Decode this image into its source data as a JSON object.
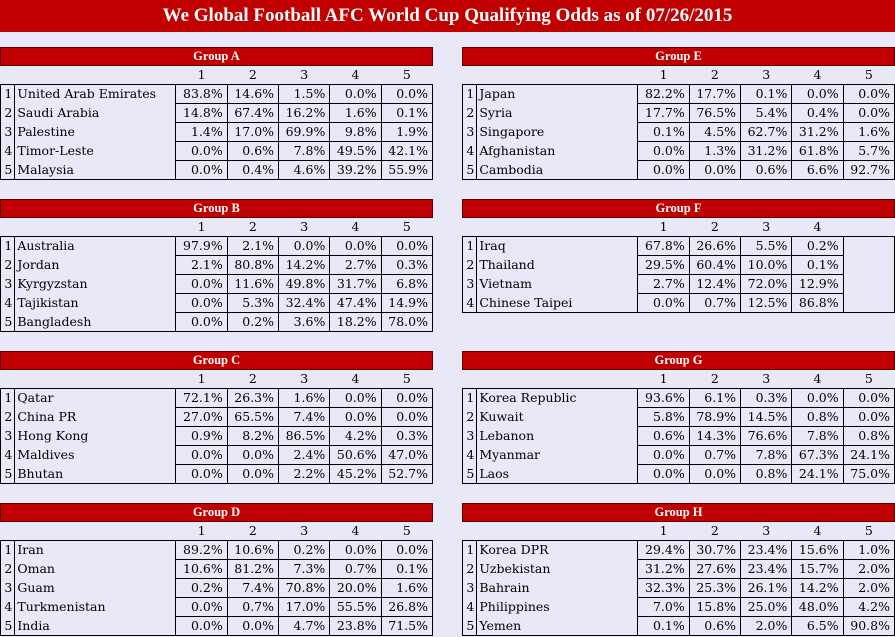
{
  "title": "We Global Football AFC World Cup Qualifying Odds as of 07/26/2015",
  "groups": [
    {
      "name": "Group A",
      "cols": [
        "1",
        "2",
        "3",
        "4",
        "5"
      ],
      "rows": [
        {
          "rank": "1",
          "team": "United Arab Emirates",
          "odds": [
            "83.8%",
            "14.6%",
            "1.5%",
            "0.0%",
            "0.0%"
          ]
        },
        {
          "rank": "2",
          "team": "Saudi Arabia",
          "odds": [
            "14.8%",
            "67.4%",
            "16.2%",
            "1.6%",
            "0.1%"
          ]
        },
        {
          "rank": "3",
          "team": "Palestine",
          "odds": [
            "1.4%",
            "17.0%",
            "69.9%",
            "9.8%",
            "1.9%"
          ]
        },
        {
          "rank": "4",
          "team": "Timor-Leste",
          "odds": [
            "0.0%",
            "0.6%",
            "7.8%",
            "49.5%",
            "42.1%"
          ]
        },
        {
          "rank": "5",
          "team": "Malaysia",
          "odds": [
            "0.0%",
            "0.4%",
            "4.6%",
            "39.2%",
            "55.9%"
          ]
        }
      ]
    },
    {
      "name": "Group E",
      "cols": [
        "1",
        "2",
        "3",
        "4",
        "5"
      ],
      "rows": [
        {
          "rank": "1",
          "team": "Japan",
          "odds": [
            "82.2%",
            "17.7%",
            "0.1%",
            "0.0%",
            "0.0%"
          ]
        },
        {
          "rank": "2",
          "team": "Syria",
          "odds": [
            "17.7%",
            "76.5%",
            "5.4%",
            "0.4%",
            "0.0%"
          ]
        },
        {
          "rank": "3",
          "team": "Singapore",
          "odds": [
            "0.1%",
            "4.5%",
            "62.7%",
            "31.2%",
            "1.6%"
          ]
        },
        {
          "rank": "4",
          "team": "Afghanistan",
          "odds": [
            "0.0%",
            "1.3%",
            "31.2%",
            "61.8%",
            "5.7%"
          ]
        },
        {
          "rank": "5",
          "team": "Cambodia",
          "odds": [
            "0.0%",
            "0.0%",
            "0.6%",
            "6.6%",
            "92.7%"
          ]
        }
      ]
    },
    {
      "name": "Group B",
      "cols": [
        "1",
        "2",
        "3",
        "4",
        "5"
      ],
      "rows": [
        {
          "rank": "1",
          "team": "Australia",
          "odds": [
            "97.9%",
            "2.1%",
            "0.0%",
            "0.0%",
            "0.0%"
          ]
        },
        {
          "rank": "2",
          "team": "Jordan",
          "odds": [
            "2.1%",
            "80.8%",
            "14.2%",
            "2.7%",
            "0.3%"
          ]
        },
        {
          "rank": "3",
          "team": "Kyrgyzstan",
          "odds": [
            "0.0%",
            "11.6%",
            "49.8%",
            "31.7%",
            "6.8%"
          ]
        },
        {
          "rank": "4",
          "team": "Tajikistan",
          "odds": [
            "0.0%",
            "5.3%",
            "32.4%",
            "47.4%",
            "14.9%"
          ]
        },
        {
          "rank": "5",
          "team": "Bangladesh",
          "odds": [
            "0.0%",
            "0.2%",
            "3.6%",
            "18.2%",
            "78.0%"
          ]
        }
      ]
    },
    {
      "name": "Group F",
      "cols": [
        "1",
        "2",
        "3",
        "4",
        ""
      ],
      "rows": [
        {
          "rank": "1",
          "team": "Iraq",
          "odds": [
            "67.8%",
            "26.6%",
            "5.5%",
            "0.2%",
            ""
          ]
        },
        {
          "rank": "2",
          "team": "Thailand",
          "odds": [
            "29.5%",
            "60.4%",
            "10.0%",
            "0.1%",
            ""
          ]
        },
        {
          "rank": "3",
          "team": "Vietnam",
          "odds": [
            "2.7%",
            "12.4%",
            "72.0%",
            "12.9%",
            ""
          ]
        },
        {
          "rank": "4",
          "team": "Chinese Taipei",
          "odds": [
            "0.0%",
            "0.7%",
            "12.5%",
            "86.8%",
            ""
          ]
        }
      ]
    },
    {
      "name": "Group C",
      "cols": [
        "1",
        "2",
        "3",
        "4",
        "5"
      ],
      "rows": [
        {
          "rank": "1",
          "team": "Qatar",
          "odds": [
            "72.1%",
            "26.3%",
            "1.6%",
            "0.0%",
            "0.0%"
          ]
        },
        {
          "rank": "2",
          "team": "China PR",
          "odds": [
            "27.0%",
            "65.5%",
            "7.4%",
            "0.0%",
            "0.0%"
          ]
        },
        {
          "rank": "3",
          "team": "Hong Kong",
          "odds": [
            "0.9%",
            "8.2%",
            "86.5%",
            "4.2%",
            "0.3%"
          ]
        },
        {
          "rank": "4",
          "team": "Maldives",
          "odds": [
            "0.0%",
            "0.0%",
            "2.4%",
            "50.6%",
            "47.0%"
          ]
        },
        {
          "rank": "5",
          "team": "Bhutan",
          "odds": [
            "0.0%",
            "0.0%",
            "2.2%",
            "45.2%",
            "52.7%"
          ]
        }
      ]
    },
    {
      "name": "Group G",
      "cols": [
        "1",
        "2",
        "3",
        "4",
        "5"
      ],
      "rows": [
        {
          "rank": "1",
          "team": "Korea Republic",
          "odds": [
            "93.6%",
            "6.1%",
            "0.3%",
            "0.0%",
            "0.0%"
          ]
        },
        {
          "rank": "2",
          "team": "Kuwait",
          "odds": [
            "5.8%",
            "78.9%",
            "14.5%",
            "0.8%",
            "0.0%"
          ]
        },
        {
          "rank": "3",
          "team": "Lebanon",
          "odds": [
            "0.6%",
            "14.3%",
            "76.6%",
            "7.8%",
            "0.8%"
          ]
        },
        {
          "rank": "4",
          "team": "Myanmar",
          "odds": [
            "0.0%",
            "0.7%",
            "7.8%",
            "67.3%",
            "24.1%"
          ]
        },
        {
          "rank": "5",
          "team": "Laos",
          "odds": [
            "0.0%",
            "0.0%",
            "0.8%",
            "24.1%",
            "75.0%"
          ]
        }
      ]
    },
    {
      "name": "Group D",
      "cols": [
        "1",
        "2",
        "3",
        "4",
        "5"
      ],
      "rows": [
        {
          "rank": "1",
          "team": "Iran",
          "odds": [
            "89.2%",
            "10.6%",
            "0.2%",
            "0.0%",
            "0.0%"
          ]
        },
        {
          "rank": "2",
          "team": "Oman",
          "odds": [
            "10.6%",
            "81.2%",
            "7.3%",
            "0.7%",
            "0.1%"
          ]
        },
        {
          "rank": "3",
          "team": "Guam",
          "odds": [
            "0.2%",
            "7.4%",
            "70.8%",
            "20.0%",
            "1.6%"
          ]
        },
        {
          "rank": "4",
          "team": "Turkmenistan",
          "odds": [
            "0.0%",
            "0.7%",
            "17.0%",
            "55.5%",
            "26.8%"
          ]
        },
        {
          "rank": "5",
          "team": "India",
          "odds": [
            "0.0%",
            "0.0%",
            "4.7%",
            "23.8%",
            "71.5%"
          ]
        }
      ]
    },
    {
      "name": "Group H",
      "cols": [
        "1",
        "2",
        "3",
        "4",
        "5"
      ],
      "rows": [
        {
          "rank": "1",
          "team": "Korea DPR",
          "odds": [
            "29.4%",
            "30.7%",
            "23.4%",
            "15.6%",
            "1.0%"
          ]
        },
        {
          "rank": "2",
          "team": "Uzbekistan",
          "odds": [
            "31.2%",
            "27.6%",
            "23.4%",
            "15.7%",
            "2.0%"
          ]
        },
        {
          "rank": "3",
          "team": "Bahrain",
          "odds": [
            "32.3%",
            "25.3%",
            "26.1%",
            "14.2%",
            "2.0%"
          ]
        },
        {
          "rank": "4",
          "team": "Philippines",
          "odds": [
            "7.0%",
            "15.8%",
            "25.0%",
            "48.0%",
            "4.2%"
          ]
        },
        {
          "rank": "5",
          "team": "Yemen",
          "odds": [
            "0.1%",
            "0.6%",
            "2.0%",
            "6.5%",
            "90.8%"
          ]
        }
      ]
    }
  ]
}
